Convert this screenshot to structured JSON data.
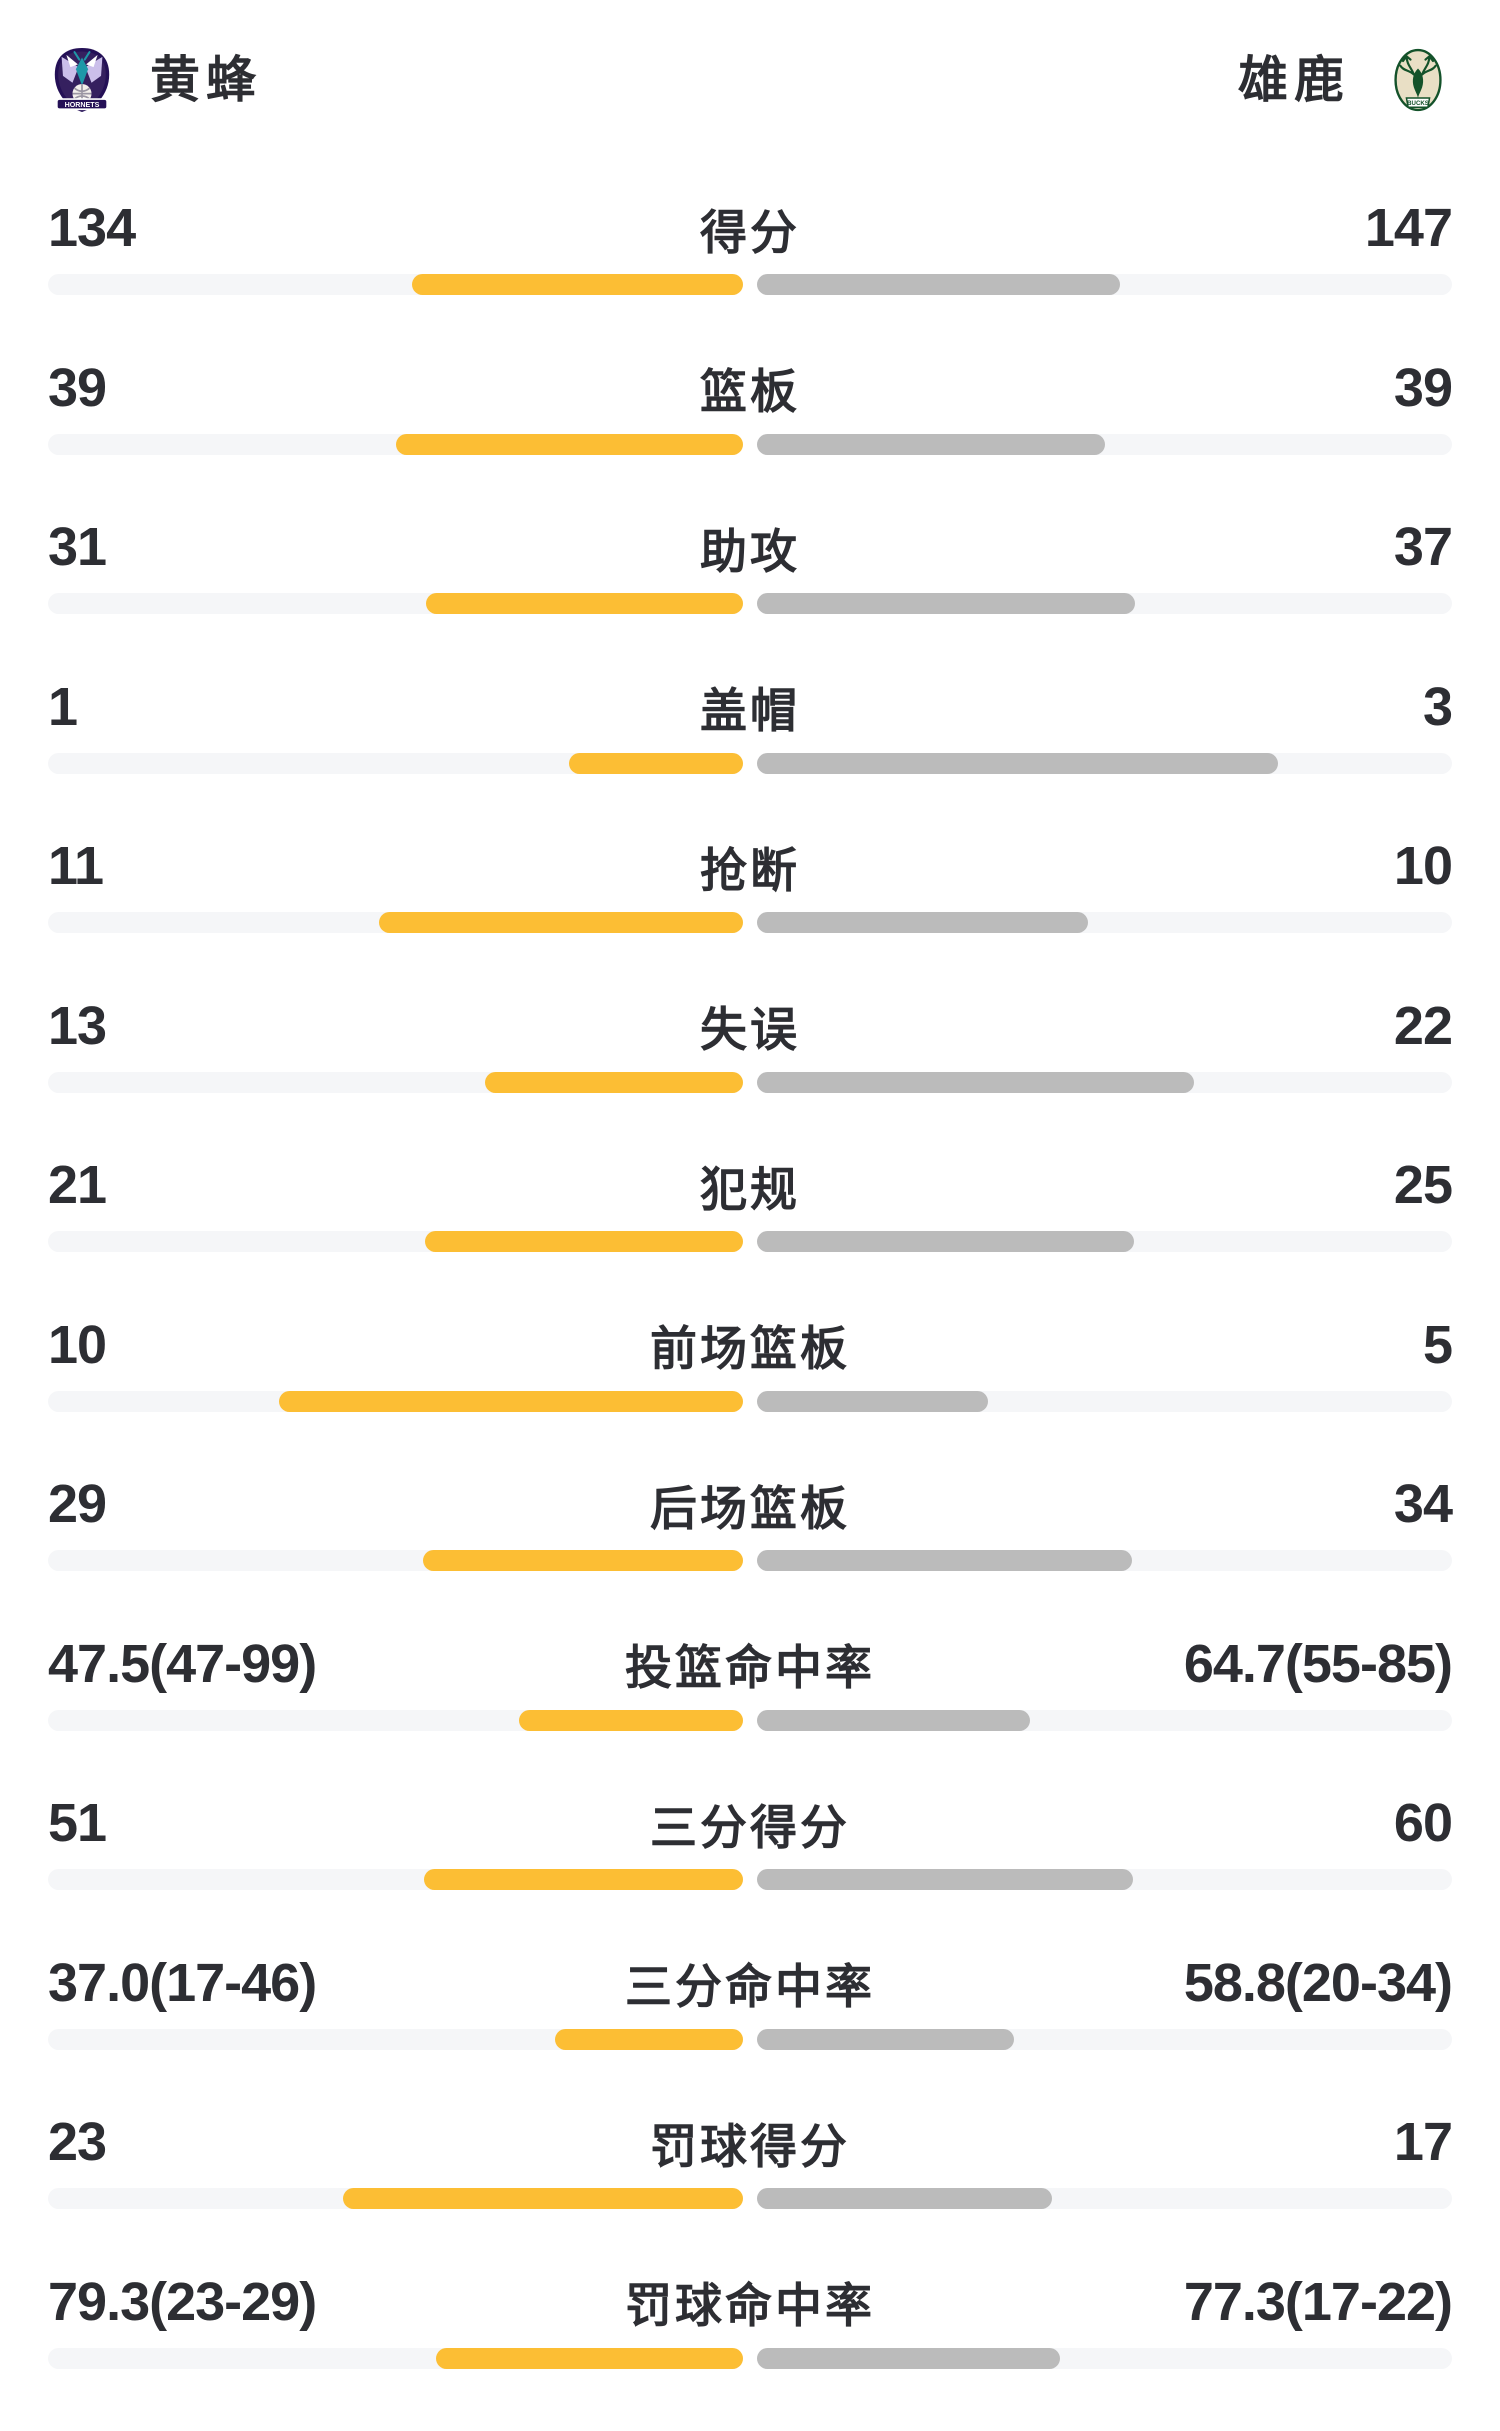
{
  "header": {
    "home_team": {
      "name": "黄蜂",
      "logo_text": "HORNETS"
    },
    "away_team": {
      "name": "雄鹿",
      "logo_text": "BUCKS"
    }
  },
  "colors": {
    "text": "#2D2E33",
    "home-bar": "#FCBE34",
    "away-bar": "#BBBBBB",
    "track": "#F5F6F8",
    "background": "#FFFFFF"
  },
  "chart_data": {
    "type": "bar",
    "layout": "mirrored-comparison-bars",
    "teams": [
      "黄蜂",
      "雄鹿"
    ],
    "rows": [
      {
        "label": "得分",
        "home": {
          "display": "134",
          "value": 134,
          "frac": 0.477
        },
        "away": {
          "display": "147",
          "value": 147,
          "frac": 0.523
        }
      },
      {
        "label": "篮板",
        "home": {
          "display": "39",
          "value": 39,
          "frac": 0.5
        },
        "away": {
          "display": "39",
          "value": 39,
          "frac": 0.5
        }
      },
      {
        "label": "助攻",
        "home": {
          "display": "31",
          "value": 31,
          "frac": 0.456
        },
        "away": {
          "display": "37",
          "value": 37,
          "frac": 0.544
        }
      },
      {
        "label": "盖帽",
        "home": {
          "display": "1",
          "value": 1,
          "frac": 0.25
        },
        "away": {
          "display": "3",
          "value": 3,
          "frac": 0.75
        }
      },
      {
        "label": "抢断",
        "home": {
          "display": "11",
          "value": 11,
          "frac": 0.524
        },
        "away": {
          "display": "10",
          "value": 10,
          "frac": 0.476
        }
      },
      {
        "label": "失误",
        "home": {
          "display": "13",
          "value": 13,
          "frac": 0.371
        },
        "away": {
          "display": "22",
          "value": 22,
          "frac": 0.629
        }
      },
      {
        "label": "犯规",
        "home": {
          "display": "21",
          "value": 21,
          "frac": 0.457
        },
        "away": {
          "display": "25",
          "value": 25,
          "frac": 0.543
        }
      },
      {
        "label": "前场篮板",
        "home": {
          "display": "10",
          "value": 10,
          "frac": 0.667
        },
        "away": {
          "display": "5",
          "value": 5,
          "frac": 0.333
        }
      },
      {
        "label": "后场篮板",
        "home": {
          "display": "29",
          "value": 29,
          "frac": 0.46
        },
        "away": {
          "display": "34",
          "value": 34,
          "frac": 0.54
        }
      },
      {
        "label": "投篮命中率",
        "home": {
          "display": "47.5(47-99)",
          "value": 47.5,
          "frac": 0.322
        },
        "away": {
          "display": "64.7(55-85)",
          "value": 64.7,
          "frac": 0.393
        }
      },
      {
        "label": "三分得分",
        "home": {
          "display": "51",
          "value": 51,
          "frac": 0.459
        },
        "away": {
          "display": "60",
          "value": 60,
          "frac": 0.541
        }
      },
      {
        "label": "三分命中率",
        "home": {
          "display": "37.0(17-46)",
          "value": 37.0,
          "frac": 0.27
        },
        "away": {
          "display": "58.8(20-34)",
          "value": 58.8,
          "frac": 0.37
        }
      },
      {
        "label": "罚球得分",
        "home": {
          "display": "23",
          "value": 23,
          "frac": 0.575
        },
        "away": {
          "display": "17",
          "value": 17,
          "frac": 0.425
        }
      },
      {
        "label": "罚球命中率",
        "home": {
          "display": "79.3(23-29)",
          "value": 79.3,
          "frac": 0.442
        },
        "away": {
          "display": "77.3(17-22)",
          "value": 77.3,
          "frac": 0.436
        }
      }
    ]
  }
}
